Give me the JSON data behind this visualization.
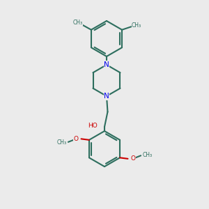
{
  "bg_color": "#ebebeb",
  "bond_color": "#2d6e5e",
  "bond_width": 1.5,
  "N_color": "#0000ee",
  "O_color": "#cc0000",
  "figsize": [
    3.0,
    3.0
  ],
  "dpi": 100,
  "xlim": [
    0,
    10
  ],
  "ylim": [
    0,
    10
  ]
}
